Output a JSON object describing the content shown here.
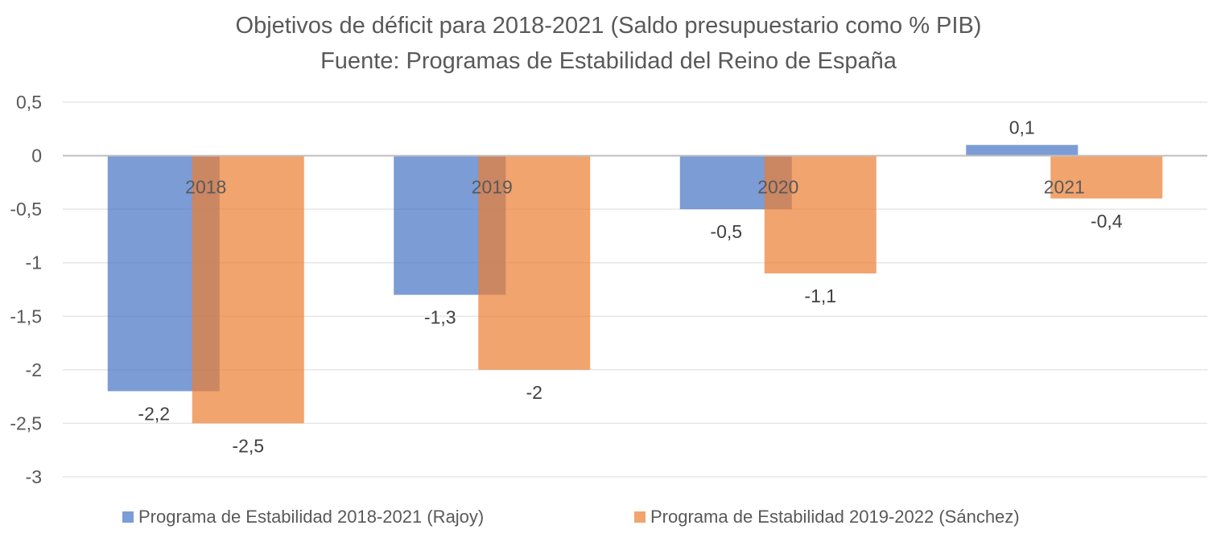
{
  "chart_data": {
    "type": "bar",
    "title": "Objetivos de déficit para 2018-2021 (Saldo presupuestario como % PIB)",
    "subtitle": "Fuente: Programas de Estabilidad del Reino de España",
    "xlabel": "",
    "ylabel": "",
    "categories": [
      "2018",
      "2019",
      "2020",
      "2021"
    ],
    "series": [
      {
        "name": "Programa de Estabilidad 2018-2021 (Rajoy)",
        "color": "#4472C4",
        "values": [
          -2.2,
          -1.3,
          -0.5,
          0.1
        ],
        "labels": [
          "-2,2",
          "-1,3",
          "-0,5",
          "0,1"
        ]
      },
      {
        "name": "Programa de Estabilidad 2019-2022 (Sánchez)",
        "color": "#ED7D31",
        "values": [
          -2.5,
          -2.0,
          -1.1,
          -0.4
        ],
        "labels": [
          "-2,5",
          "-2",
          "-1,1",
          "-0,4"
        ]
      }
    ],
    "ylim": [
      -3,
      0.5
    ],
    "yticks": [
      0.5,
      0,
      -0.5,
      -1,
      -1.5,
      -2,
      -2.5,
      -3
    ],
    "ytick_labels": [
      "0,5",
      "0",
      "-0,5",
      "-1",
      "-1,5",
      "-2",
      "-2,5",
      "-3"
    ],
    "grid": true,
    "legend": "bottom",
    "bar_opacity": 0.7
  }
}
